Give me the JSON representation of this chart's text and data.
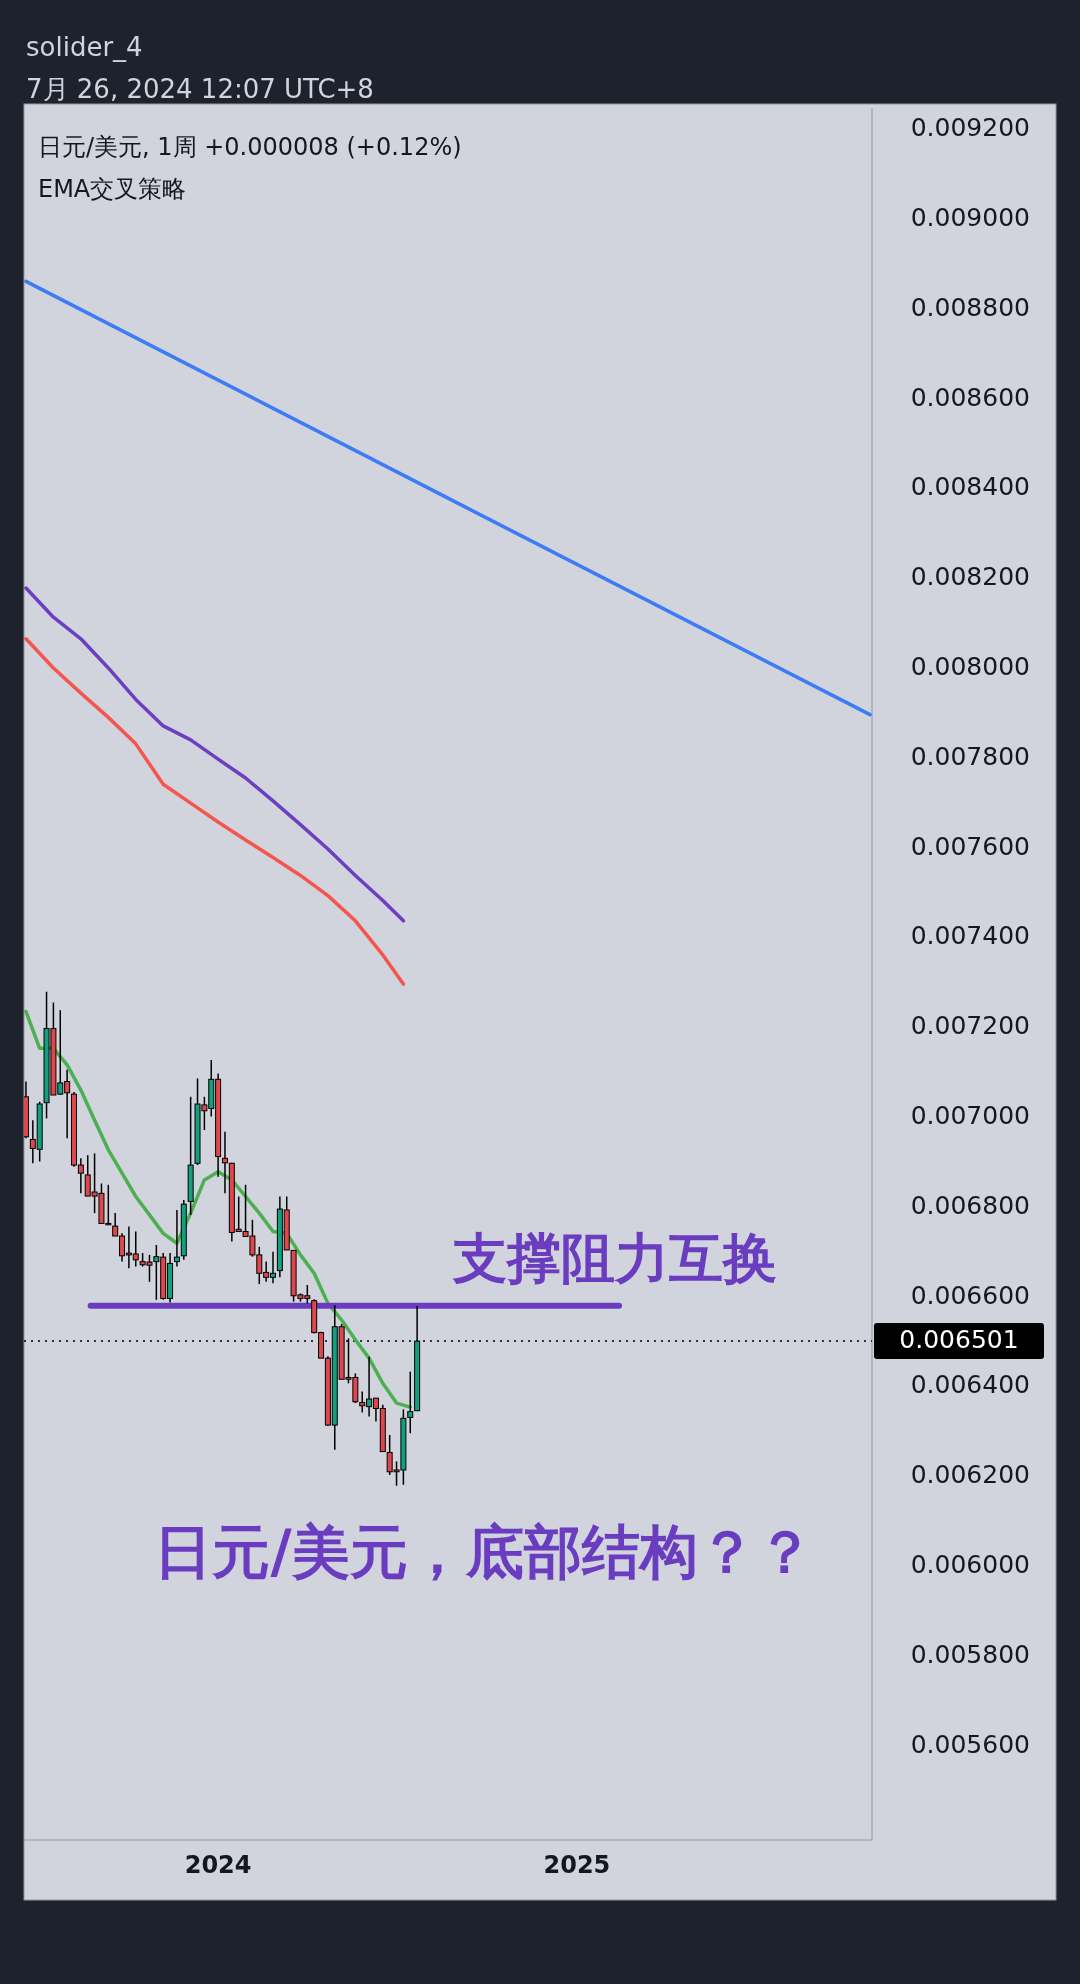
{
  "chart_data": {
    "type": "candlestick",
    "title": "日元/美元, 1周  +0.000008 (+0.12%)",
    "subtitle": "EMA交叉策略",
    "annotations": [
      "支撑阻力互换",
      "日元/美元，底部结构？？",
      "solider_4",
      "7月 26, 2024 12:07 UTC+8"
    ],
    "x": [
      "2023-06-19",
      "2023-06-26",
      "2023-07-03",
      "2023-07-10",
      "2023-07-17",
      "2023-07-24",
      "2023-07-31",
      "2023-08-07",
      "2023-08-14",
      "2023-08-21",
      "2023-08-28",
      "2023-09-04",
      "2023-09-11",
      "2023-09-18",
      "2023-09-25",
      "2023-10-02",
      "2023-10-09",
      "2023-10-16",
      "2023-10-23",
      "2023-10-30",
      "2023-11-06",
      "2023-11-13",
      "2023-11-20",
      "2023-11-27",
      "2023-12-04",
      "2023-12-11",
      "2023-12-18",
      "2023-12-25",
      "2024-01-01",
      "2024-01-08",
      "2024-01-15",
      "2024-01-22",
      "2024-01-29",
      "2024-02-05",
      "2024-02-12",
      "2024-02-19",
      "2024-02-26",
      "2024-03-04",
      "2024-03-11",
      "2024-03-18",
      "2024-03-25",
      "2024-04-01",
      "2024-04-08",
      "2024-04-15",
      "2024-04-22",
      "2024-04-29",
      "2024-05-06",
      "2024-05-13",
      "2024-05-20",
      "2024-05-27",
      "2024-06-03",
      "2024-06-10",
      "2024-06-17",
      "2024-06-24",
      "2024-07-01",
      "2024-07-08",
      "2024-07-15",
      "2024-07-22"
    ],
    "ohlc": [
      [
        0.007045,
        0.007079,
        0.006953,
        0.006956
      ],
      [
        0.00695,
        0.006993,
        0.006897,
        0.00693
      ],
      [
        0.006928,
        0.007034,
        0.006901,
        0.007029
      ],
      [
        0.007032,
        0.007279,
        0.006997,
        0.007197
      ],
      [
        0.007197,
        0.007255,
        0.007049,
        0.007049
      ],
      [
        0.007051,
        0.007238,
        0.007049,
        0.007076
      ],
      [
        0.007079,
        0.007105,
        0.006953,
        0.007054
      ],
      [
        0.007051,
        0.007056,
        0.006889,
        0.006893
      ],
      [
        0.006893,
        0.006908,
        0.00683,
        0.006875
      ],
      [
        0.006871,
        0.006915,
        0.006824,
        0.006824
      ],
      [
        0.006833,
        0.006919,
        0.006786,
        0.006824
      ],
      [
        0.00683,
        0.006852,
        0.006763,
        0.006763
      ],
      [
        0.006763,
        0.006849,
        0.00676,
        0.00676
      ],
      [
        0.006757,
        0.006786,
        0.006735,
        0.006735
      ],
      [
        0.006735,
        0.006741,
        0.006678,
        0.006691
      ],
      [
        0.006697,
        0.006756,
        0.006663,
        0.006693
      ],
      [
        0.006695,
        0.006745,
        0.006667,
        0.006682
      ],
      [
        0.006678,
        0.006697,
        0.006667,
        0.006671
      ],
      [
        0.006677,
        0.006693,
        0.006633,
        0.00667
      ],
      [
        0.006678,
        0.006715,
        0.006593,
        0.006689
      ],
      [
        0.006688,
        0.006697,
        0.006593,
        0.006596
      ],
      [
        0.006596,
        0.006697,
        0.006587,
        0.006674
      ],
      [
        0.006678,
        0.006793,
        0.006667,
        0.006688
      ],
      [
        0.006691,
        0.006815,
        0.006682,
        0.006806
      ],
      [
        0.006812,
        0.007045,
        0.006782,
        0.006893
      ],
      [
        0.006897,
        0.007086,
        0.006893,
        0.007029
      ],
      [
        0.007027,
        0.007045,
        0.006971,
        0.007014
      ],
      [
        0.007019,
        0.007127,
        0.007001,
        0.007084
      ],
      [
        0.007084,
        0.007097,
        0.006867,
        0.006912
      ],
      [
        0.006908,
        0.006967,
        0.00683,
        0.006898
      ],
      [
        0.006897,
        0.006898,
        0.006723,
        0.006743
      ],
      [
        0.00675,
        0.006823,
        0.006745,
        0.006745
      ],
      [
        0.006745,
        0.006849,
        0.006734,
        0.006734
      ],
      [
        0.006735,
        0.006771,
        0.006689,
        0.006693
      ],
      [
        0.006693,
        0.006711,
        0.006628,
        0.006652
      ],
      [
        0.006654,
        0.006678,
        0.006633,
        0.006643
      ],
      [
        0.006643,
        0.0067,
        0.00663,
        0.006652
      ],
      [
        0.006658,
        0.006823,
        0.006643,
        0.006795
      ],
      [
        0.006793,
        0.006823,
        0.006704,
        0.006704
      ],
      [
        0.006703,
        0.006704,
        0.006589,
        0.006602
      ],
      [
        0.006604,
        0.006607,
        0.006589,
        0.006596
      ],
      [
        0.006602,
        0.006626,
        0.006585,
        0.006596
      ],
      [
        0.006591,
        0.006594,
        0.006518,
        0.00652
      ],
      [
        0.00652,
        0.006522,
        0.006463,
        0.006463
      ],
      [
        0.006463,
        0.006467,
        0.006312,
        0.006314
      ],
      [
        0.006314,
        0.006581,
        0.006259,
        0.006533
      ],
      [
        0.006533,
        0.006539,
        0.006416,
        0.006416
      ],
      [
        0.00642,
        0.006507,
        0.006407,
        0.006416
      ],
      [
        0.00642,
        0.006429,
        0.006363,
        0.006366
      ],
      [
        0.006364,
        0.006389,
        0.006342,
        0.006357
      ],
      [
        0.006355,
        0.006466,
        0.006333,
        0.006372
      ],
      [
        0.006374,
        0.006374,
        0.006322,
        0.006351
      ],
      [
        0.006351,
        0.006359,
        0.006255,
        0.006255
      ],
      [
        0.006253,
        0.006292,
        0.006203,
        0.00621
      ],
      [
        0.006214,
        0.006233,
        0.006179,
        0.00621
      ],
      [
        0.006214,
        0.006349,
        0.006181,
        0.006329
      ],
      [
        0.006331,
        0.006433,
        0.006296,
        0.006344
      ],
      [
        0.006346,
        0.006579,
        0.006346,
        0.006501
      ]
    ],
    "colors": [
      "#e0474c",
      "#e0474c",
      "#12a07e",
      "#12a07e",
      "#e0474c",
      "#12a07e",
      "#e0474c",
      "#e0474c",
      "#e0474c",
      "#e0474c",
      "#e0474c",
      "#e0474c",
      "#e0474c",
      "#e0474c",
      "#e0474c",
      "#e0474c",
      "#e0474c",
      "#e0474c",
      "#e0474c",
      "#12a07e",
      "#e0474c",
      "#12a07e",
      "#12a07e",
      "#12a07e",
      "#12a07e",
      "#12a07e",
      "#e0474c",
      "#12a07e",
      "#e0474c",
      "#e0474c",
      "#e0474c",
      "#e0474c",
      "#e0474c",
      "#e0474c",
      "#e0474c",
      "#e0474c",
      "#12a07e",
      "#12a07e",
      "#e0474c",
      "#e0474c",
      "#e0474c",
      "#e0474c",
      "#e0474c",
      "#e0474c",
      "#e0474c",
      "#12a07e",
      "#e0474c",
      "#e0474c",
      "#e0474c",
      "#e0474c",
      "#12a07e",
      "#e0474c",
      "#e0474c",
      "#e0474c",
      "#e0474c",
      "#12a07e",
      "#12a07e",
      "#12a07e"
    ],
    "series": [
      {
        "type": "line",
        "color": "#3d7cf5",
        "x": [
          "2023-06-19",
          "2024-08-19",
          "2025-10-27"
        ],
        "values": [
          0.008861,
          0.008382,
          0.007896
        ]
      },
      {
        "type": "line",
        "color": "#6c3fc2",
        "x": [
          "2023-06-19",
          "2023-07-17",
          "2023-08-14",
          "2023-09-11",
          "2023-10-09",
          "2023-11-06",
          "2023-12-04",
          "2024-01-01",
          "2024-01-29",
          "2024-02-26",
          "2024-03-25",
          "2024-04-22",
          "2024-05-20",
          "2024-06-17",
          "2024-07-08"
        ],
        "values": [
          0.008178,
          0.008113,
          0.008065,
          0.008,
          0.00793,
          0.007871,
          0.00784,
          0.007797,
          0.007755,
          0.007704,
          0.007651,
          0.007597,
          0.007538,
          0.007482,
          0.007437
        ]
      },
      {
        "type": "line",
        "color": "#f4564f",
        "x": [
          "2023-06-19",
          "2023-07-17",
          "2023-08-14",
          "2023-09-11",
          "2023-10-09",
          "2023-11-06",
          "2023-12-04",
          "2024-01-01",
          "2024-01-29",
          "2024-02-26",
          "2024-03-25",
          "2024-04-22",
          "2024-05-20",
          "2024-06-17",
          "2024-07-08"
        ],
        "values": [
          0.008065,
          0.008,
          0.007944,
          0.00789,
          0.007831,
          0.007741,
          0.007699,
          0.007657,
          0.007617,
          0.007578,
          0.007538,
          0.007493,
          0.007437,
          0.007361,
          0.007296
        ]
      },
      {
        "type": "line",
        "color": "#4caf50",
        "x": [
          "2023-06-19",
          "2023-07-03",
          "2023-07-17",
          "2023-07-31",
          "2023-08-14",
          "2023-08-28",
          "2023-09-11",
          "2023-09-25",
          "2023-10-09",
          "2023-10-23",
          "2023-11-06",
          "2023-11-20",
          "2023-12-04",
          "2023-12-18",
          "2024-01-01",
          "2024-01-15",
          "2024-01-29",
          "2024-02-12",
          "2024-02-26",
          "2024-03-11",
          "2024-03-25",
          "2024-04-08",
          "2024-04-22",
          "2024-05-06",
          "2024-05-20",
          "2024-06-03",
          "2024-06-17",
          "2024-07-01",
          "2024-07-15"
        ],
        "values": [
          0.007235,
          0.007153,
          0.007153,
          0.007116,
          0.00706,
          0.006993,
          0.006927,
          0.006875,
          0.006823,
          0.006782,
          0.006741,
          0.006719,
          0.006786,
          0.00686,
          0.006878,
          0.00686,
          0.006823,
          0.006786,
          0.006745,
          0.006741,
          0.006693,
          0.006652,
          0.006585,
          0.006548,
          0.006504,
          0.006463,
          0.006407,
          0.006363,
          0.006354
        ]
      },
      {
        "type": "line",
        "color": "#6a3cc0",
        "x": [
          "2023-08-24",
          "2025-02-13"
        ],
        "values": [
          0.00658,
          0.00658
        ]
      }
    ],
    "ref_lines": [
      {
        "axis": "y",
        "value": 0.006501,
        "label": "0.006501",
        "color": "#000000",
        "line_style": "dotted"
      }
    ],
    "xlim": [
      "2023-06-17",
      "2025-10-29"
    ],
    "xticks": [
      {
        "value": "2024-01-01",
        "label": "2024"
      },
      {
        "value": "2025-01-01",
        "label": "2025"
      }
    ],
    "ylim": [
      0.00539,
      0.009247
    ],
    "yticks": [
      {
        "value": 0.0056,
        "label": "0.005600"
      },
      {
        "value": 0.0058,
        "label": "0.005800"
      },
      {
        "value": 0.006,
        "label": "0.006000"
      },
      {
        "value": 0.0062,
        "label": "0.006200"
      },
      {
        "value": 0.0064,
        "label": "0.006400"
      },
      {
        "value": 0.0066,
        "label": "0.006600"
      },
      {
        "value": 0.0068,
        "label": "0.006800"
      },
      {
        "value": 0.007,
        "label": "0.007000"
      },
      {
        "value": 0.0072,
        "label": "0.007200"
      },
      {
        "value": 0.0074,
        "label": "0.007400"
      },
      {
        "value": 0.0076,
        "label": "0.007600"
      },
      {
        "value": 0.0078,
        "label": "0.007800"
      },
      {
        "value": 0.008,
        "label": "0.008000"
      },
      {
        "value": 0.0082,
        "label": "0.008200"
      },
      {
        "value": 0.0084,
        "label": "0.008400"
      },
      {
        "value": 0.0086,
        "label": "0.008600"
      },
      {
        "value": 0.0088,
        "label": "0.008800"
      },
      {
        "value": 0.009,
        "label": "0.009000"
      },
      {
        "value": 0.0092,
        "label": "0.009200"
      }
    ]
  }
}
